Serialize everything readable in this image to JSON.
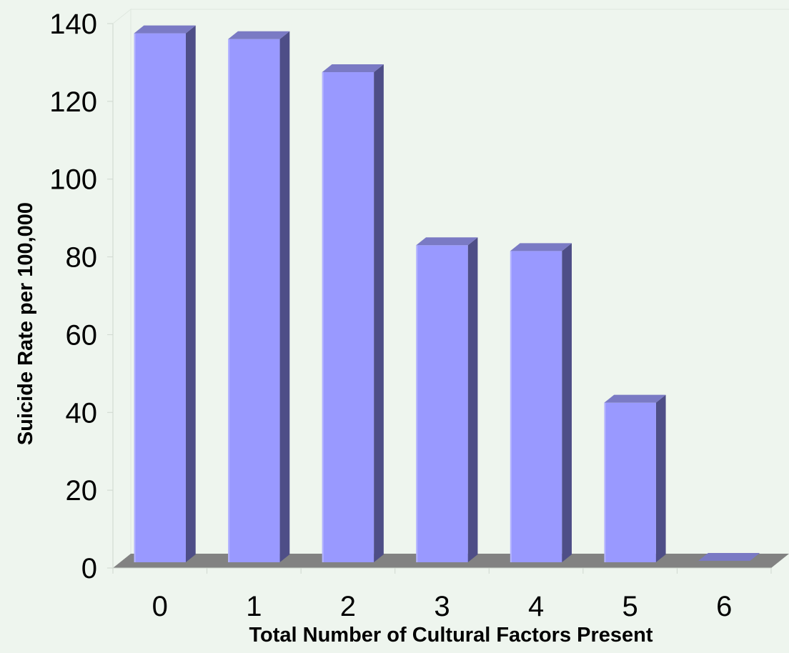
{
  "chart_data": {
    "type": "bar",
    "title": "",
    "xlabel": "Total Number of Cultural Factors Present",
    "ylabel": "Suicide Rate per 100,000",
    "categories": [
      "0",
      "1",
      "2",
      "3",
      "4",
      "5",
      "6"
    ],
    "values": [
      137.5,
      136,
      127.5,
      83,
      81.5,
      42.5,
      0
    ],
    "ylim": [
      0,
      140
    ],
    "yticks": [
      "0",
      "20",
      "40",
      "60",
      "80",
      "100",
      "120",
      "140"
    ],
    "grid": false,
    "legend": "none",
    "style": "3d-bar"
  },
  "colors": {
    "background": "#eef5ee",
    "bar_front": "#9999ff",
    "bar_side": "#4e4e87",
    "bar_top": "#7a7ac4",
    "floor": "#828282"
  }
}
